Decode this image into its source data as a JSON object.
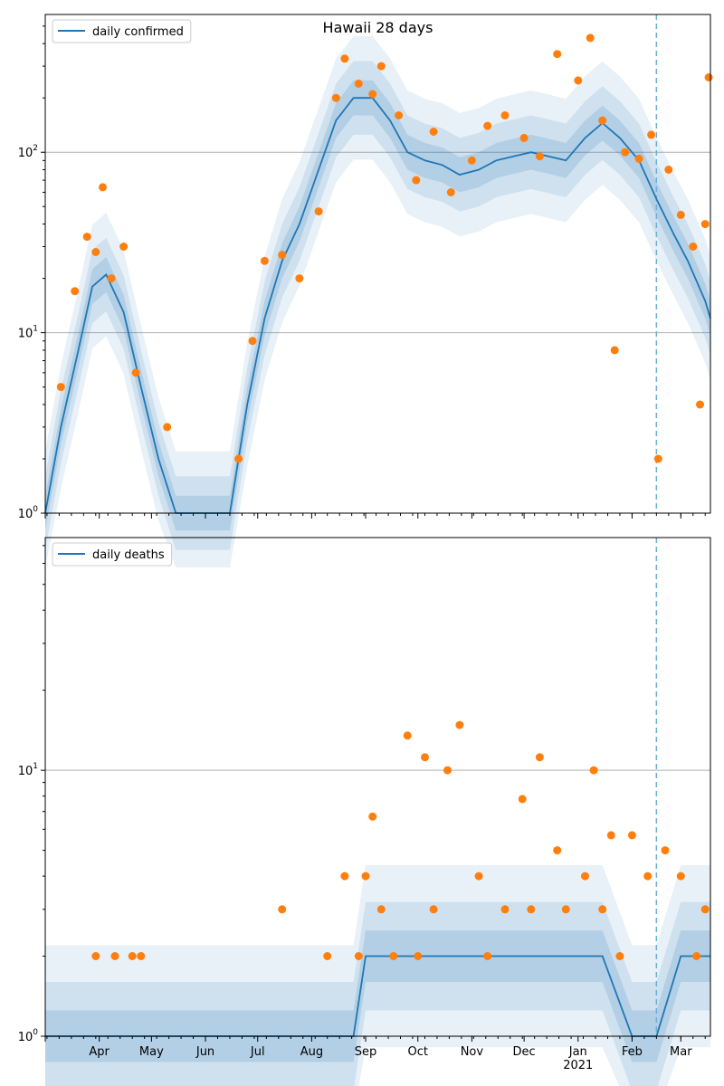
{
  "chart_data": [
    {
      "type": "line",
      "title": "Hawaii 28 days",
      "yscale": "log",
      "ylim": [
        1,
        580
      ],
      "xlim": [
        "2020-03-01",
        "2021-03-18"
      ],
      "grid": "y-major",
      "legend": {
        "placement": "top-left",
        "entries": [
          "daily confirmed"
        ]
      },
      "ytick_labels": [
        "10^0",
        "10^1",
        "10^2"
      ],
      "vline": "2021-02-15",
      "colors": {
        "line": "#1f77b4",
        "points": "#ff7f0e",
        "band": "#1f77b4",
        "grid": "#b0b0b0"
      },
      "series": [
        {
          "name": "daily confirmed",
          "x": [
            "2020-03-01",
            "2020-03-10",
            "2020-03-20",
            "2020-03-28",
            "2020-04-05",
            "2020-04-15",
            "2020-04-25",
            "2020-05-05",
            "2020-05-15",
            "2020-05-25",
            "2020-06-05",
            "2020-06-15",
            "2020-06-25",
            "2020-07-05",
            "2020-07-15",
            "2020-07-25",
            "2020-08-05",
            "2020-08-15",
            "2020-08-25",
            "2020-09-05",
            "2020-09-15",
            "2020-09-25",
            "2020-10-05",
            "2020-10-15",
            "2020-10-25",
            "2020-11-05",
            "2020-11-15",
            "2020-11-25",
            "2020-12-05",
            "2020-12-15",
            "2020-12-25",
            "2021-01-05",
            "2021-01-15",
            "2021-01-25",
            "2021-02-05",
            "2021-02-15",
            "2021-02-25",
            "2021-03-05",
            "2021-03-15",
            "2021-03-18"
          ],
          "y": [
            1,
            3,
            8,
            18,
            21,
            13,
            5,
            2,
            1,
            1,
            1,
            1,
            4,
            12,
            25,
            40,
            80,
            150,
            200,
            200,
            150,
            100,
            90,
            85,
            75,
            80,
            90,
            95,
            100,
            95,
            90,
            120,
            145,
            120,
            90,
            55,
            35,
            25,
            15,
            12
          ]
        }
      ],
      "observations": {
        "x": [
          "2020-03-10",
          "2020-03-18",
          "2020-03-25",
          "2020-03-30",
          "2020-04-03",
          "2020-04-08",
          "2020-04-15",
          "2020-04-22",
          "2020-05-10",
          "2020-06-20",
          "2020-06-28",
          "2020-07-05",
          "2020-07-15",
          "2020-07-25",
          "2020-08-05",
          "2020-08-15",
          "2020-08-20",
          "2020-08-28",
          "2020-09-05",
          "2020-09-10",
          "2020-09-20",
          "2020-09-30",
          "2020-10-10",
          "2020-10-20",
          "2020-11-01",
          "2020-11-10",
          "2020-11-20",
          "2020-12-01",
          "2020-12-10",
          "2020-12-20",
          "2021-01-01",
          "2021-01-08",
          "2021-01-15",
          "2021-01-22",
          "2021-01-28",
          "2021-02-05",
          "2021-02-12",
          "2021-02-16",
          "2021-02-22",
          "2021-03-01",
          "2021-03-08",
          "2021-03-12",
          "2021-03-15",
          "2021-03-17"
        ],
        "y": [
          5,
          17,
          34,
          28,
          64,
          20,
          30,
          6,
          3,
          2,
          9,
          25,
          27,
          20,
          47,
          200,
          330,
          240,
          210,
          300,
          160,
          70,
          130,
          60,
          90,
          140,
          160,
          120,
          95,
          350,
          250,
          430,
          150,
          8,
          100,
          92,
          125,
          2,
          80,
          45,
          30,
          4,
          40,
          260
        ]
      }
    },
    {
      "type": "line",
      "title": "",
      "yscale": "log",
      "ylim": [
        1,
        75
      ],
      "xlim": [
        "2020-03-01",
        "2021-03-18"
      ],
      "grid": "y-major",
      "legend": {
        "placement": "top-left",
        "entries": [
          "daily deaths"
        ]
      },
      "ytick_labels": [
        "10^0",
        "10^1"
      ],
      "xtick_labels": [
        "Apr",
        "May",
        "Jun",
        "Jul",
        "Aug",
        "Sep",
        "Oct",
        "Nov",
        "Dec",
        "Jan\n2021",
        "Feb",
        "Mar"
      ],
      "vline": "2021-02-15",
      "colors": {
        "line": "#1f77b4",
        "points": "#ff7f0e",
        "band": "#1f77b4",
        "grid": "#b0b0b0"
      },
      "series": [
        {
          "name": "daily deaths",
          "x": [
            "2020-03-01",
            "2020-08-25",
            "2020-09-01",
            "2020-10-01",
            "2020-11-01",
            "2020-12-01",
            "2021-01-01",
            "2021-01-15",
            "2021-02-01",
            "2021-02-15",
            "2021-03-01",
            "2021-03-18"
          ],
          "y": [
            1,
            1,
            2,
            2,
            2,
            2,
            2,
            2,
            1,
            1,
            2,
            2
          ]
        }
      ],
      "observations": {
        "x": [
          "2020-03-30",
          "2020-04-10",
          "2020-04-20",
          "2020-04-25",
          "2020-07-15",
          "2020-08-10",
          "2020-08-20",
          "2020-08-28",
          "2020-09-01",
          "2020-09-05",
          "2020-09-10",
          "2020-09-17",
          "2020-09-25",
          "2020-10-01",
          "2020-10-05",
          "2020-10-10",
          "2020-10-18",
          "2020-10-25",
          "2020-11-05",
          "2020-11-10",
          "2020-11-20",
          "2020-11-30",
          "2020-12-05",
          "2020-12-10",
          "2020-12-20",
          "2020-12-25",
          "2021-01-05",
          "2021-01-10",
          "2021-01-15",
          "2021-01-20",
          "2021-01-25",
          "2021-02-01",
          "2021-02-10",
          "2021-02-20",
          "2021-03-01",
          "2021-03-10",
          "2021-03-15"
        ],
        "y": [
          2,
          2,
          2,
          2,
          3,
          2,
          4,
          2,
          4,
          6.7,
          3,
          2,
          13.5,
          2,
          11.2,
          3,
          10,
          14.8,
          4,
          2,
          3,
          7.8,
          3,
          11.2,
          5,
          3,
          4,
          10,
          3,
          5.7,
          2,
          5.7,
          4,
          5,
          4,
          2,
          3
        ]
      }
    }
  ]
}
